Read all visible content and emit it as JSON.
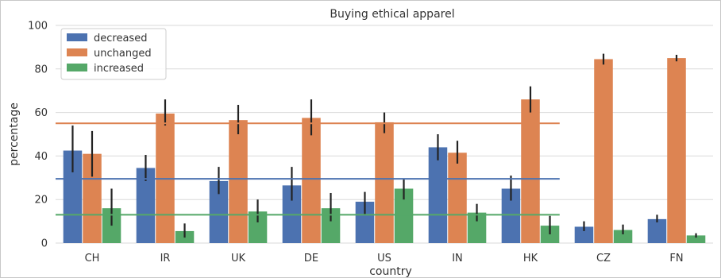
{
  "chart_data": {
    "type": "bar",
    "title": "Buying ethical apparel",
    "xlabel": "country",
    "ylabel": "percentage",
    "ylim": [
      0,
      100
    ],
    "yticks": [
      0,
      20,
      40,
      60,
      80,
      100
    ],
    "grid": true,
    "legend_position": "top-left",
    "categories": [
      "CH",
      "IR",
      "UK",
      "DE",
      "US",
      "IN",
      "HK",
      "CZ",
      "FN"
    ],
    "series": [
      {
        "name": "decreased",
        "color": "#4c72b0",
        "values": [
          42.5,
          34.5,
          28.5,
          26.5,
          19,
          44,
          25,
          7.5,
          11
        ],
        "error_low": [
          32.5,
          28.5,
          22.5,
          19.5,
          13,
          38,
          19.5,
          5.5,
          9.5
        ],
        "error_high": [
          54,
          40.5,
          35,
          35,
          23.5,
          50,
          31,
          10,
          13
        ],
        "mean_line": 29.5
      },
      {
        "name": "unchanged",
        "color": "#dd8452",
        "values": [
          41,
          59.5,
          56.5,
          57.5,
          55.5,
          41.5,
          66,
          84.5,
          85
        ],
        "error_low": [
          30.5,
          54,
          50,
          49.5,
          50.5,
          36.5,
          60,
          82,
          83.5
        ],
        "error_high": [
          51.5,
          66,
          63.5,
          66,
          60,
          47,
          72,
          87,
          86.5
        ],
        "mean_line": 55
      },
      {
        "name": "increased",
        "color": "#55a868",
        "values": [
          16,
          5.5,
          14.5,
          16,
          25,
          14,
          8,
          6,
          3.5
        ],
        "error_low": [
          8,
          2.5,
          9.5,
          10,
          20,
          10,
          4,
          4,
          2.5
        ],
        "error_high": [
          25,
          9,
          20,
          23,
          29.5,
          18,
          12.5,
          8.5,
          4.5
        ],
        "mean_line": 13
      }
    ]
  }
}
